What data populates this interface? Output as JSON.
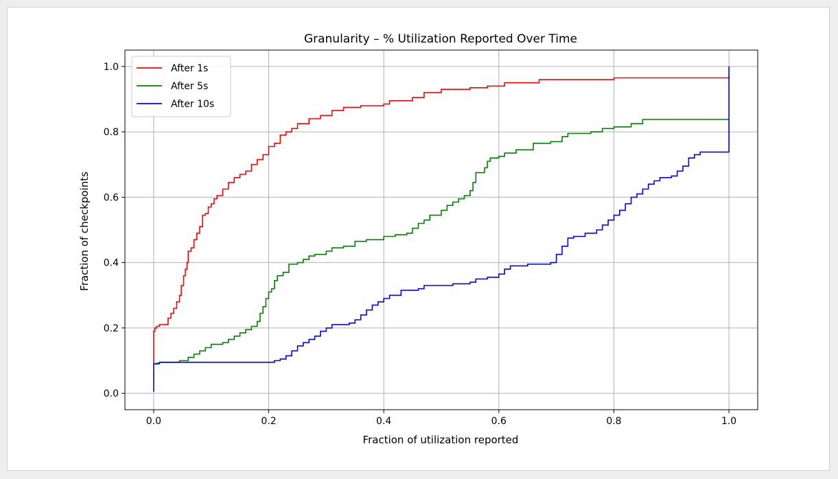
{
  "chart_data": {
    "type": "line",
    "step": true,
    "title": "Granularity – % Utilization Reported Over Time",
    "xlabel": "Fraction of utilization reported",
    "ylabel": "Fraction of checkpoints",
    "xlim": [
      -0.05,
      1.05
    ],
    "ylim": [
      -0.05,
      1.05
    ],
    "xticks": [
      0.0,
      0.2,
      0.4,
      0.6,
      0.8,
      1.0
    ],
    "xtick_labels": [
      "0.0",
      "0.2",
      "0.4",
      "0.6",
      "0.8",
      "1.0"
    ],
    "yticks": [
      0.0,
      0.2,
      0.4,
      0.6,
      0.8,
      1.0
    ],
    "ytick_labels": [
      "0.0",
      "0.2",
      "0.4",
      "0.6",
      "0.8",
      "1.0"
    ],
    "grid": true,
    "legend": "upper-left",
    "series": [
      {
        "name": "After 1s",
        "color": "#ff0000",
        "points": [
          [
            0.0,
            0.09
          ],
          [
            0.0,
            0.19
          ],
          [
            0.002,
            0.2
          ],
          [
            0.005,
            0.205
          ],
          [
            0.01,
            0.21
          ],
          [
            0.02,
            0.21
          ],
          [
            0.025,
            0.23
          ],
          [
            0.03,
            0.245
          ],
          [
            0.035,
            0.26
          ],
          [
            0.04,
            0.28
          ],
          [
            0.045,
            0.3
          ],
          [
            0.048,
            0.33
          ],
          [
            0.052,
            0.36
          ],
          [
            0.055,
            0.38
          ],
          [
            0.058,
            0.4
          ],
          [
            0.06,
            0.435
          ],
          [
            0.065,
            0.445
          ],
          [
            0.07,
            0.47
          ],
          [
            0.075,
            0.49
          ],
          [
            0.08,
            0.51
          ],
          [
            0.085,
            0.545
          ],
          [
            0.09,
            0.55
          ],
          [
            0.095,
            0.57
          ],
          [
            0.1,
            0.58
          ],
          [
            0.105,
            0.595
          ],
          [
            0.11,
            0.605
          ],
          [
            0.12,
            0.625
          ],
          [
            0.13,
            0.645
          ],
          [
            0.14,
            0.66
          ],
          [
            0.15,
            0.67
          ],
          [
            0.16,
            0.68
          ],
          [
            0.17,
            0.7
          ],
          [
            0.18,
            0.715
          ],
          [
            0.19,
            0.73
          ],
          [
            0.2,
            0.755
          ],
          [
            0.21,
            0.765
          ],
          [
            0.22,
            0.79
          ],
          [
            0.23,
            0.8
          ],
          [
            0.24,
            0.81
          ],
          [
            0.25,
            0.825
          ],
          [
            0.27,
            0.84
          ],
          [
            0.29,
            0.85
          ],
          [
            0.31,
            0.865
          ],
          [
            0.33,
            0.875
          ],
          [
            0.36,
            0.88
          ],
          [
            0.4,
            0.885
          ],
          [
            0.41,
            0.895
          ],
          [
            0.45,
            0.905
          ],
          [
            0.47,
            0.92
          ],
          [
            0.5,
            0.93
          ],
          [
            0.55,
            0.935
          ],
          [
            0.58,
            0.94
          ],
          [
            0.61,
            0.95
          ],
          [
            0.67,
            0.96
          ],
          [
            0.8,
            0.965
          ],
          [
            1.0,
            0.965
          ],
          [
            1.0,
            0.97
          ]
        ]
      },
      {
        "name": "After 5s",
        "color": "#008000",
        "points": [
          [
            0.0,
            0.09
          ],
          [
            0.01,
            0.095
          ],
          [
            0.045,
            0.1
          ],
          [
            0.06,
            0.11
          ],
          [
            0.07,
            0.12
          ],
          [
            0.08,
            0.13
          ],
          [
            0.09,
            0.14
          ],
          [
            0.1,
            0.15
          ],
          [
            0.12,
            0.155
          ],
          [
            0.13,
            0.165
          ],
          [
            0.14,
            0.175
          ],
          [
            0.15,
            0.185
          ],
          [
            0.16,
            0.195
          ],
          [
            0.17,
            0.205
          ],
          [
            0.18,
            0.22
          ],
          [
            0.185,
            0.245
          ],
          [
            0.19,
            0.265
          ],
          [
            0.195,
            0.29
          ],
          [
            0.2,
            0.31
          ],
          [
            0.205,
            0.32
          ],
          [
            0.21,
            0.345
          ],
          [
            0.215,
            0.36
          ],
          [
            0.225,
            0.37
          ],
          [
            0.235,
            0.395
          ],
          [
            0.25,
            0.4
          ],
          [
            0.26,
            0.41
          ],
          [
            0.27,
            0.42
          ],
          [
            0.28,
            0.425
          ],
          [
            0.3,
            0.435
          ],
          [
            0.31,
            0.445
          ],
          [
            0.33,
            0.45
          ],
          [
            0.35,
            0.465
          ],
          [
            0.37,
            0.47
          ],
          [
            0.4,
            0.48
          ],
          [
            0.42,
            0.485
          ],
          [
            0.44,
            0.49
          ],
          [
            0.45,
            0.505
          ],
          [
            0.46,
            0.52
          ],
          [
            0.47,
            0.53
          ],
          [
            0.48,
            0.545
          ],
          [
            0.5,
            0.56
          ],
          [
            0.51,
            0.575
          ],
          [
            0.52,
            0.585
          ],
          [
            0.53,
            0.595
          ],
          [
            0.54,
            0.605
          ],
          [
            0.55,
            0.62
          ],
          [
            0.555,
            0.645
          ],
          [
            0.56,
            0.675
          ],
          [
            0.575,
            0.69
          ],
          [
            0.58,
            0.71
          ],
          [
            0.585,
            0.72
          ],
          [
            0.6,
            0.725
          ],
          [
            0.61,
            0.735
          ],
          [
            0.63,
            0.745
          ],
          [
            0.66,
            0.765
          ],
          [
            0.69,
            0.77
          ],
          [
            0.71,
            0.785
          ],
          [
            0.72,
            0.795
          ],
          [
            0.76,
            0.8
          ],
          [
            0.78,
            0.81
          ],
          [
            0.8,
            0.815
          ],
          [
            0.83,
            0.825
          ],
          [
            0.85,
            0.838
          ],
          [
            1.0,
            0.838
          ]
        ]
      },
      {
        "name": "After 10s",
        "color": "#0000ff",
        "points": [
          [
            0.0,
            0.005
          ],
          [
            0.0,
            0.09
          ],
          [
            0.005,
            0.092
          ],
          [
            0.01,
            0.095
          ],
          [
            0.2,
            0.095
          ],
          [
            0.21,
            0.1
          ],
          [
            0.22,
            0.105
          ],
          [
            0.23,
            0.115
          ],
          [
            0.24,
            0.13
          ],
          [
            0.25,
            0.145
          ],
          [
            0.26,
            0.155
          ],
          [
            0.27,
            0.165
          ],
          [
            0.28,
            0.175
          ],
          [
            0.29,
            0.19
          ],
          [
            0.3,
            0.2
          ],
          [
            0.31,
            0.21
          ],
          [
            0.34,
            0.215
          ],
          [
            0.35,
            0.225
          ],
          [
            0.36,
            0.24
          ],
          [
            0.37,
            0.255
          ],
          [
            0.38,
            0.27
          ],
          [
            0.39,
            0.28
          ],
          [
            0.4,
            0.29
          ],
          [
            0.41,
            0.3
          ],
          [
            0.43,
            0.315
          ],
          [
            0.46,
            0.32
          ],
          [
            0.47,
            0.33
          ],
          [
            0.52,
            0.335
          ],
          [
            0.55,
            0.34
          ],
          [
            0.56,
            0.35
          ],
          [
            0.58,
            0.355
          ],
          [
            0.6,
            0.365
          ],
          [
            0.61,
            0.38
          ],
          [
            0.62,
            0.39
          ],
          [
            0.65,
            0.395
          ],
          [
            0.69,
            0.4
          ],
          [
            0.7,
            0.425
          ],
          [
            0.71,
            0.45
          ],
          [
            0.72,
            0.475
          ],
          [
            0.73,
            0.48
          ],
          [
            0.75,
            0.49
          ],
          [
            0.77,
            0.5
          ],
          [
            0.78,
            0.515
          ],
          [
            0.79,
            0.53
          ],
          [
            0.8,
            0.545
          ],
          [
            0.81,
            0.56
          ],
          [
            0.82,
            0.58
          ],
          [
            0.83,
            0.6
          ],
          [
            0.84,
            0.61
          ],
          [
            0.85,
            0.625
          ],
          [
            0.86,
            0.64
          ],
          [
            0.87,
            0.65
          ],
          [
            0.88,
            0.66
          ],
          [
            0.9,
            0.665
          ],
          [
            0.91,
            0.68
          ],
          [
            0.92,
            0.695
          ],
          [
            0.93,
            0.72
          ],
          [
            0.94,
            0.73
          ],
          [
            0.95,
            0.738
          ],
          [
            1.0,
            0.738
          ],
          [
            1.0,
            1.0
          ]
        ]
      }
    ]
  }
}
